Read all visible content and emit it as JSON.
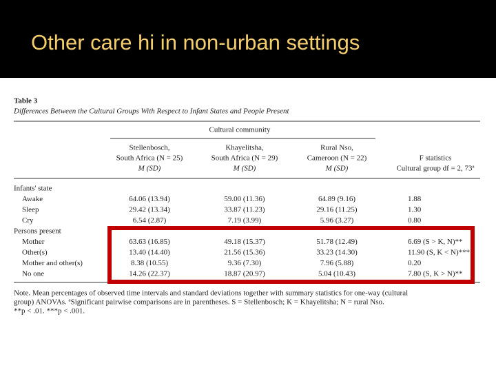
{
  "header": {
    "title": "Other care hi in non-urban settings"
  },
  "table": {
    "label": "Table 3",
    "caption": "Differences Between the Cultural Groups With Respect to Infant States and People Present",
    "spanner": "Cultural community",
    "columns": [
      [
        "Stellenbosch,",
        "South Africa (N = 25)",
        "M (SD)"
      ],
      [
        "Khayelitsha,",
        "South Africa (N = 29)",
        "M (SD)"
      ],
      [
        "Rural Nso,",
        "Cameroon (N = 22)",
        "M (SD)"
      ],
      [
        "F statistics",
        "Cultural group df = 2, 73ª"
      ]
    ],
    "sections": [
      {
        "heading": "Infants' state",
        "rows": [
          [
            "Awake",
            "64.06 (13.94)",
            "59.00 (11.36)",
            "64.89 (9.16)",
            "1.88"
          ],
          [
            "Sleep",
            "29.42 (13.34)",
            "33.87 (11.23)",
            "29.16 (11.25)",
            "1.30"
          ],
          [
            "Cry",
            "6.54 (2.87)",
            "7.19 (3.99)",
            "5.96 (3.27)",
            "0.80"
          ]
        ]
      },
      {
        "heading": "Persons present",
        "rows": [
          [
            "Mother",
            "63.63 (16.85)",
            "49.18 (15.37)",
            "51.78 (12.49)",
            "6.69 (S > K, N)**"
          ],
          [
            "Other(s)",
            "13.40 (14.40)",
            "21.56 (15.36)",
            "33.23 (14.30)",
            "11.90 (S, K < N)***"
          ],
          [
            "Mother and other(s)",
            "8.38 (10.55)",
            "9.36 (7.30)",
            "7.96 (5.88)",
            "0.20"
          ],
          [
            "No one",
            "14.26 (22.37)",
            "18.87 (20.97)",
            "5.04 (10.43)",
            "7.80 (S, K > N)**"
          ]
        ]
      }
    ],
    "note": [
      "Note. Mean percentages of observed time intervals and standard deviations together with summary statistics for one-way (cultural",
      "group) ANOVAs. ªSignificant pairwise comparisons are in parentheses. S = Stellenbosch; K = Khayelitsha; N = rural Nso.",
      "**p < .01. ***p < .001."
    ]
  }
}
